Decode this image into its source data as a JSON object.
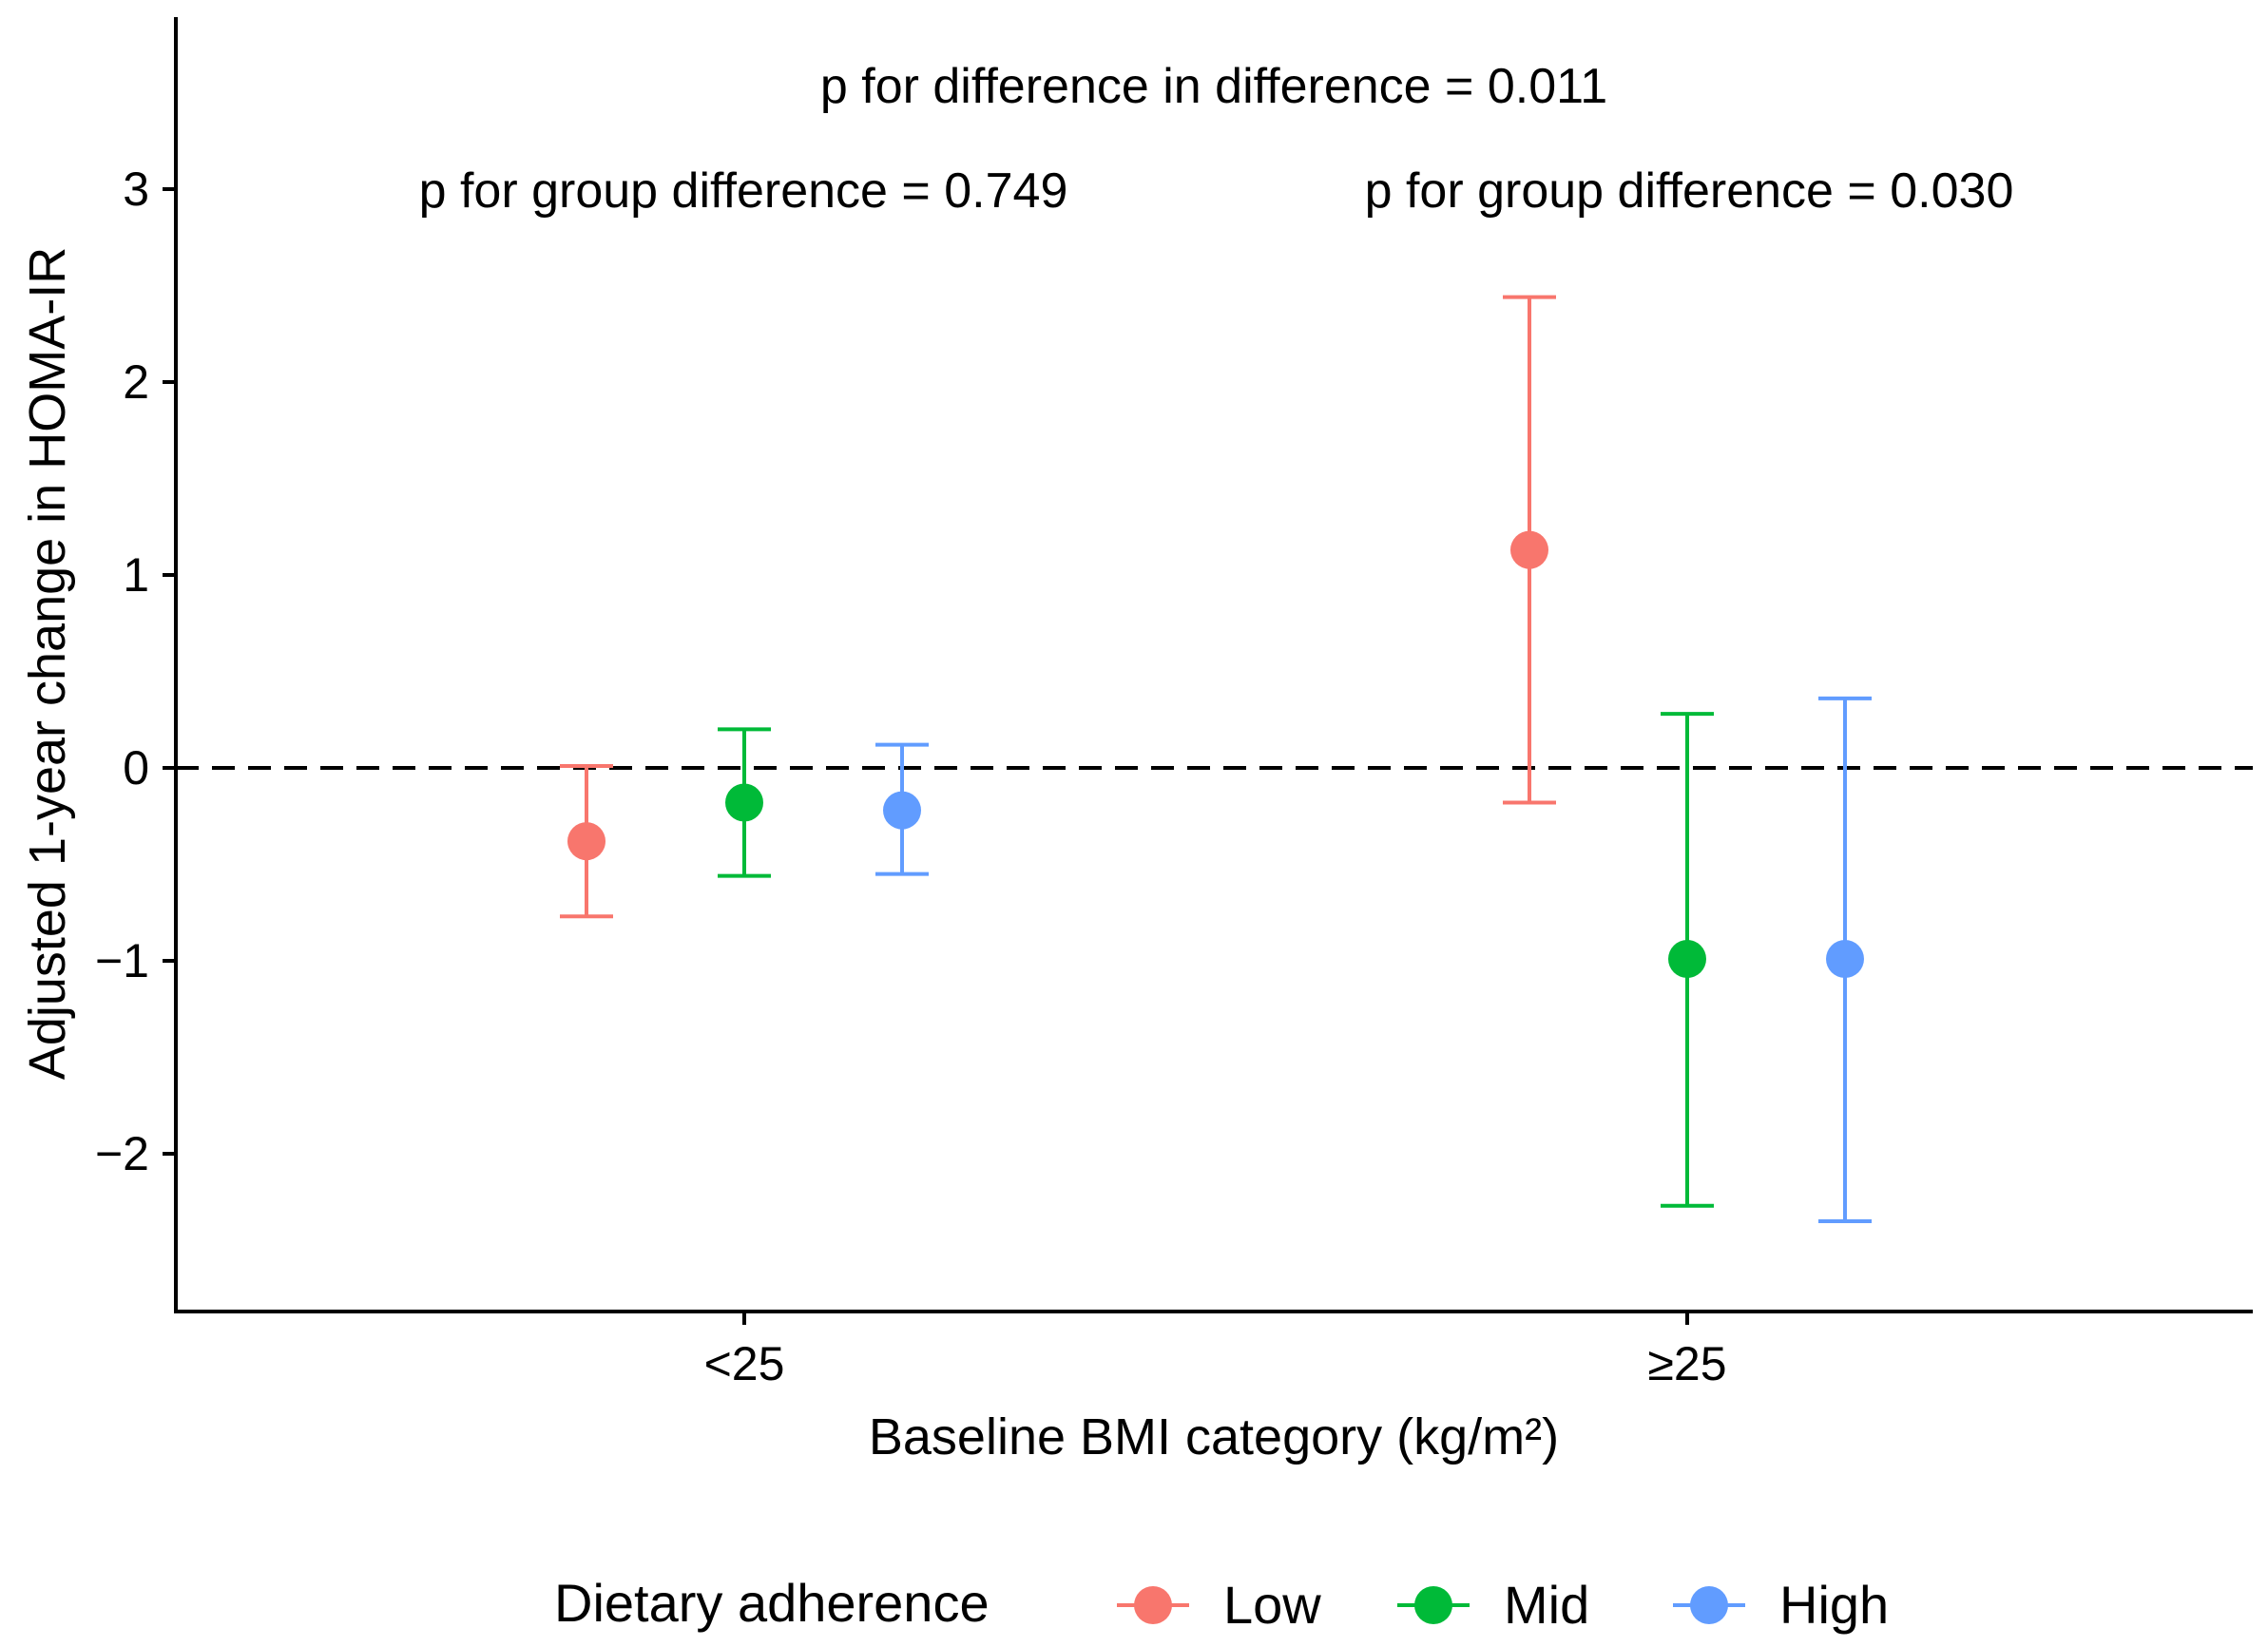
{
  "chart_data": {
    "type": "errorbar",
    "categories": [
      "<25",
      "≥25"
    ],
    "xlabel": "Baseline BMI category (kg/m²)",
    "ylabel": "Adjusted 1-year change in HOMA-IR",
    "ylim": [
      -2.8,
      3.75
    ],
    "yticks": [
      -2,
      -1,
      0,
      1,
      2,
      3
    ],
    "ytick_labels": [
      "−2",
      "−1",
      "0",
      "1",
      "2",
      "3"
    ],
    "reference_line": 0,
    "legend": {
      "title": "Dietary adherence",
      "position": "bottom"
    },
    "series": [
      {
        "name": "Low",
        "color": "#F8766D",
        "values": [
          -0.38,
          1.13
        ],
        "lower": [
          -0.77,
          -0.18
        ],
        "upper": [
          0.01,
          2.44
        ]
      },
      {
        "name": "Mid",
        "color": "#00BA38",
        "values": [
          -0.18,
          -0.99
        ],
        "lower": [
          -0.56,
          -2.27
        ],
        "upper": [
          0.2,
          0.28
        ]
      },
      {
        "name": "High",
        "color": "#619CFF",
        "values": [
          -0.22,
          -0.99
        ],
        "lower": [
          -0.55,
          -2.35
        ],
        "upper": [
          0.12,
          0.36
        ]
      }
    ],
    "annotations": [
      {
        "text": "p for difference in difference = 0.011"
      },
      {
        "text": "p for group difference = 0.749"
      },
      {
        "text": "p for group difference = 0.030"
      }
    ]
  }
}
